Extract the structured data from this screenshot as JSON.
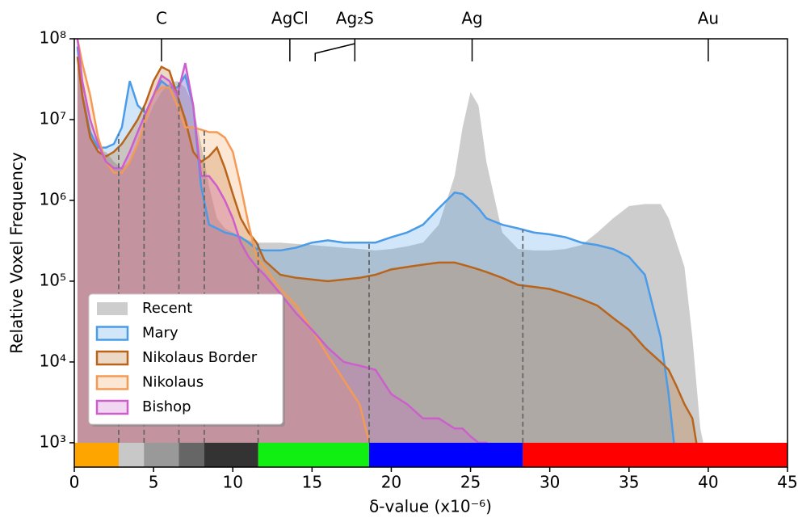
{
  "chart_data": {
    "type": "area-line",
    "xlabel": "δ-value (x10⁻⁶)",
    "ylabel": "Relative Voxel Frequency",
    "log_y": true,
    "legend": "lower left",
    "xlim": [
      0,
      45
    ],
    "xticks": [
      0,
      5,
      10,
      15,
      20,
      25,
      30,
      35,
      40,
      45
    ],
    "ylim": [
      500,
      100000000
    ],
    "yticks": [
      {
        "value": 1000,
        "label": "10³"
      },
      {
        "value": 10000,
        "label": "10⁴"
      },
      {
        "value": 100000,
        "label": "10⁵"
      },
      {
        "value": 1000000,
        "label": "10⁶"
      },
      {
        "value": 10000000,
        "label": "10⁷"
      },
      {
        "value": 100000000,
        "label": "10⁸"
      }
    ],
    "top_markers": [
      {
        "label": "C",
        "x": 5.5
      },
      {
        "label": "AgCl",
        "x": 13.6
      },
      {
        "label": "Ag₂S",
        "x": 17.7,
        "from": 15.2
      },
      {
        "label": "Ag",
        "x": 25.1
      },
      {
        "label": "Au",
        "x": 40
      }
    ],
    "color_bar": [
      {
        "start": 0,
        "end": 2.8,
        "color": "#ffa500"
      },
      {
        "start": 2.8,
        "end": 4.4,
        "color": "#c8c8c8"
      },
      {
        "start": 4.4,
        "end": 6.6,
        "color": "#999999"
      },
      {
        "start": 6.6,
        "end": 8.2,
        "color": "#666666"
      },
      {
        "start": 8.2,
        "end": 11.6,
        "color": "#333333"
      },
      {
        "start": 11.6,
        "end": 18.6,
        "color": "#11ee11"
      },
      {
        "start": 18.6,
        "end": 28.3,
        "color": "#0000ff"
      },
      {
        "start": 28.3,
        "end": 45,
        "color": "#ff0000"
      }
    ],
    "x": [
      0.2,
      0.5,
      1,
      1.5,
      2,
      2.5,
      3,
      3.5,
      4,
      4.5,
      5,
      5.5,
      6,
      6.5,
      7,
      7.5,
      8,
      8.5,
      9,
      9.5,
      10,
      10.5,
      11,
      11.5,
      12,
      13,
      14,
      15,
      16,
      17,
      18,
      19,
      20,
      21,
      22,
      23,
      24,
      24.5,
      25,
      25.5,
      26,
      27,
      28,
      29,
      30,
      31,
      32,
      33,
      34,
      35,
      36,
      37,
      37.5,
      38,
      38.5,
      39,
      39.5,
      40
    ],
    "series": [
      {
        "name": "Recent",
        "color": "#c4c4c4",
        "fill_only": true,
        "values": [
          100000000.0,
          30000000.0,
          8000000.0,
          4000000.0,
          4000000.0,
          3000000.0,
          2500000.0,
          3000000.0,
          5000000.0,
          9000000.0,
          15000000.0,
          22000000.0,
          28000000.0,
          30000000.0,
          25000000.0,
          15000000.0,
          5000000.0,
          1500000.0,
          600000.0,
          450000.0,
          400000.0,
          350000.0,
          320000.0,
          300000.0,
          300000.0,
          300000.0,
          290000.0,
          280000.0,
          270000.0,
          260000.0,
          250000.0,
          240000.0,
          250000.0,
          270000.0,
          300000.0,
          500000.0,
          2000000.0,
          8000000.0,
          22000000.0,
          15000000.0,
          3000000.0,
          400000.0,
          250000.0,
          240000.0,
          240000.0,
          250000.0,
          280000.0,
          400000.0,
          600000.0,
          850000.0,
          900000.0,
          900000.0,
          600000.0,
          300000.0,
          150000.0,
          20000.0,
          1500,
          500
        ]
      },
      {
        "name": "Mary",
        "color": "#4a9be8",
        "values": [
          80000000.0,
          20000000.0,
          7000000.0,
          4500000.0,
          4500000.0,
          5000000.0,
          8000000.0,
          30000000.0,
          15000000.0,
          12000000.0,
          20000000.0,
          30000000.0,
          25000000.0,
          25000000.0,
          35000000.0,
          15000000.0,
          1500000.0,
          500000.0,
          450000.0,
          400000.0,
          380000.0,
          350000.0,
          300000.0,
          250000.0,
          240000.0,
          240000.0,
          260000.0,
          300000.0,
          320000.0,
          300000.0,
          300000.0,
          300000.0,
          350000.0,
          400000.0,
          500000.0,
          800000.0,
          1250000.0,
          1200000.0,
          1000000.0,
          800000.0,
          600000.0,
          500000.0,
          450000.0,
          400000.0,
          380000.0,
          350000.0,
          300000.0,
          280000.0,
          250000.0,
          200000.0,
          120000.0,
          20000.0,
          4000.0,
          500,
          null,
          null,
          null,
          null
        ]
      },
      {
        "name": "Nikolaus Border",
        "color": "#b8651b",
        "values": [
          60000000.0,
          20000000.0,
          6000000.0,
          4000000.0,
          3500000.0,
          4000000.0,
          5000000.0,
          7000000.0,
          10000000.0,
          16000000.0,
          30000000.0,
          45000000.0,
          40000000.0,
          20000000.0,
          10000000.0,
          4000000.0,
          3000000.0,
          3500000.0,
          4500000.0,
          2500000.0,
          1200000.0,
          600000.0,
          400000.0,
          300000.0,
          180000.0,
          120000.0,
          110000.0,
          105000.0,
          100000.0,
          105000.0,
          110000.0,
          120000.0,
          140000.0,
          150000.0,
          160000.0,
          170000.0,
          170000.0,
          160000.0,
          150000.0,
          140000.0,
          130000.0,
          110000.0,
          90000.0,
          85000.0,
          80000.0,
          70000.0,
          60000.0,
          50000.0,
          35000.0,
          25000.0,
          15000.0,
          10000.0,
          8000.0,
          5000.0,
          3000.0,
          2000.0,
          500,
          null
        ]
      },
      {
        "name": "Nikolaus",
        "color": "#f59a55",
        "values": [
          100000000.0,
          50000000.0,
          20000000.0,
          6000000.0,
          3000000.0,
          2200000.0,
          2200000.0,
          3000000.0,
          5000000.0,
          10000000.0,
          20000000.0,
          25000000.0,
          25000000.0,
          15000000.0,
          8000000.0,
          8000000.0,
          7500000.0,
          7000000.0,
          7000000.0,
          6000000.0,
          4000000.0,
          1500000.0,
          500000.0,
          200000.0,
          150000.0,
          80000.0,
          50000.0,
          25000.0,
          12000.0,
          6000.0,
          3000.0,
          500,
          null,
          null,
          null,
          null,
          null,
          null,
          null,
          null,
          null,
          null,
          null,
          null,
          null,
          null,
          null,
          null,
          null,
          null,
          null,
          null,
          null,
          null,
          null,
          null,
          null,
          null
        ]
      },
      {
        "name": "Bishop",
        "color": "#cc5fcc",
        "values": [
          100000000.0,
          30000000.0,
          10000000.0,
          5000000.0,
          3000000.0,
          2500000.0,
          2500000.0,
          4000000.0,
          7000000.0,
          12000000.0,
          20000000.0,
          35000000.0,
          30000000.0,
          20000000.0,
          50000000.0,
          15000000.0,
          2000000.0,
          2000000.0,
          1500000.0,
          1000000.0,
          600000.0,
          300000.0,
          200000.0,
          150000.0,
          120000.0,
          70000.0,
          40000.0,
          25000.0,
          15000.0,
          10000.0,
          9000.0,
          8000.0,
          4000.0,
          3000.0,
          2000.0,
          2000.0,
          1500.0,
          1500.0,
          1200.0,
          1000.0,
          1000.0,
          500,
          null,
          null,
          null,
          null,
          null,
          null,
          null,
          null,
          null,
          null,
          null,
          null,
          null,
          null,
          null,
          null
        ]
      }
    ]
  }
}
